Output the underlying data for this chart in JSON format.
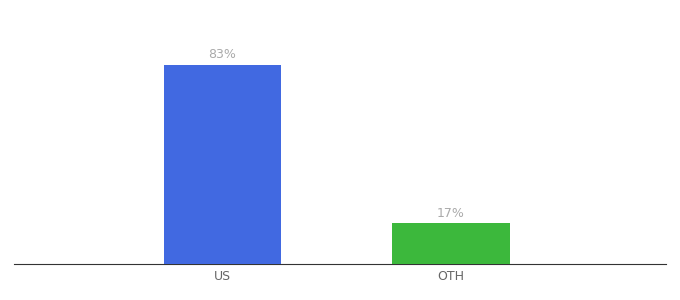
{
  "categories": [
    "US",
    "OTH"
  ],
  "values": [
    83,
    17
  ],
  "bar_colors": [
    "#4169e1",
    "#3cb83c"
  ],
  "labels": [
    "83%",
    "17%"
  ],
  "background_color": "#ffffff",
  "label_color": "#aaaaaa",
  "label_fontsize": 9,
  "tick_fontsize": 9,
  "tick_color": "#666666",
  "bar_width": 0.18,
  "x_positions": [
    0.32,
    0.67
  ],
  "xlim": [
    0.0,
    1.0
  ],
  "ylim": [
    0,
    100
  ]
}
